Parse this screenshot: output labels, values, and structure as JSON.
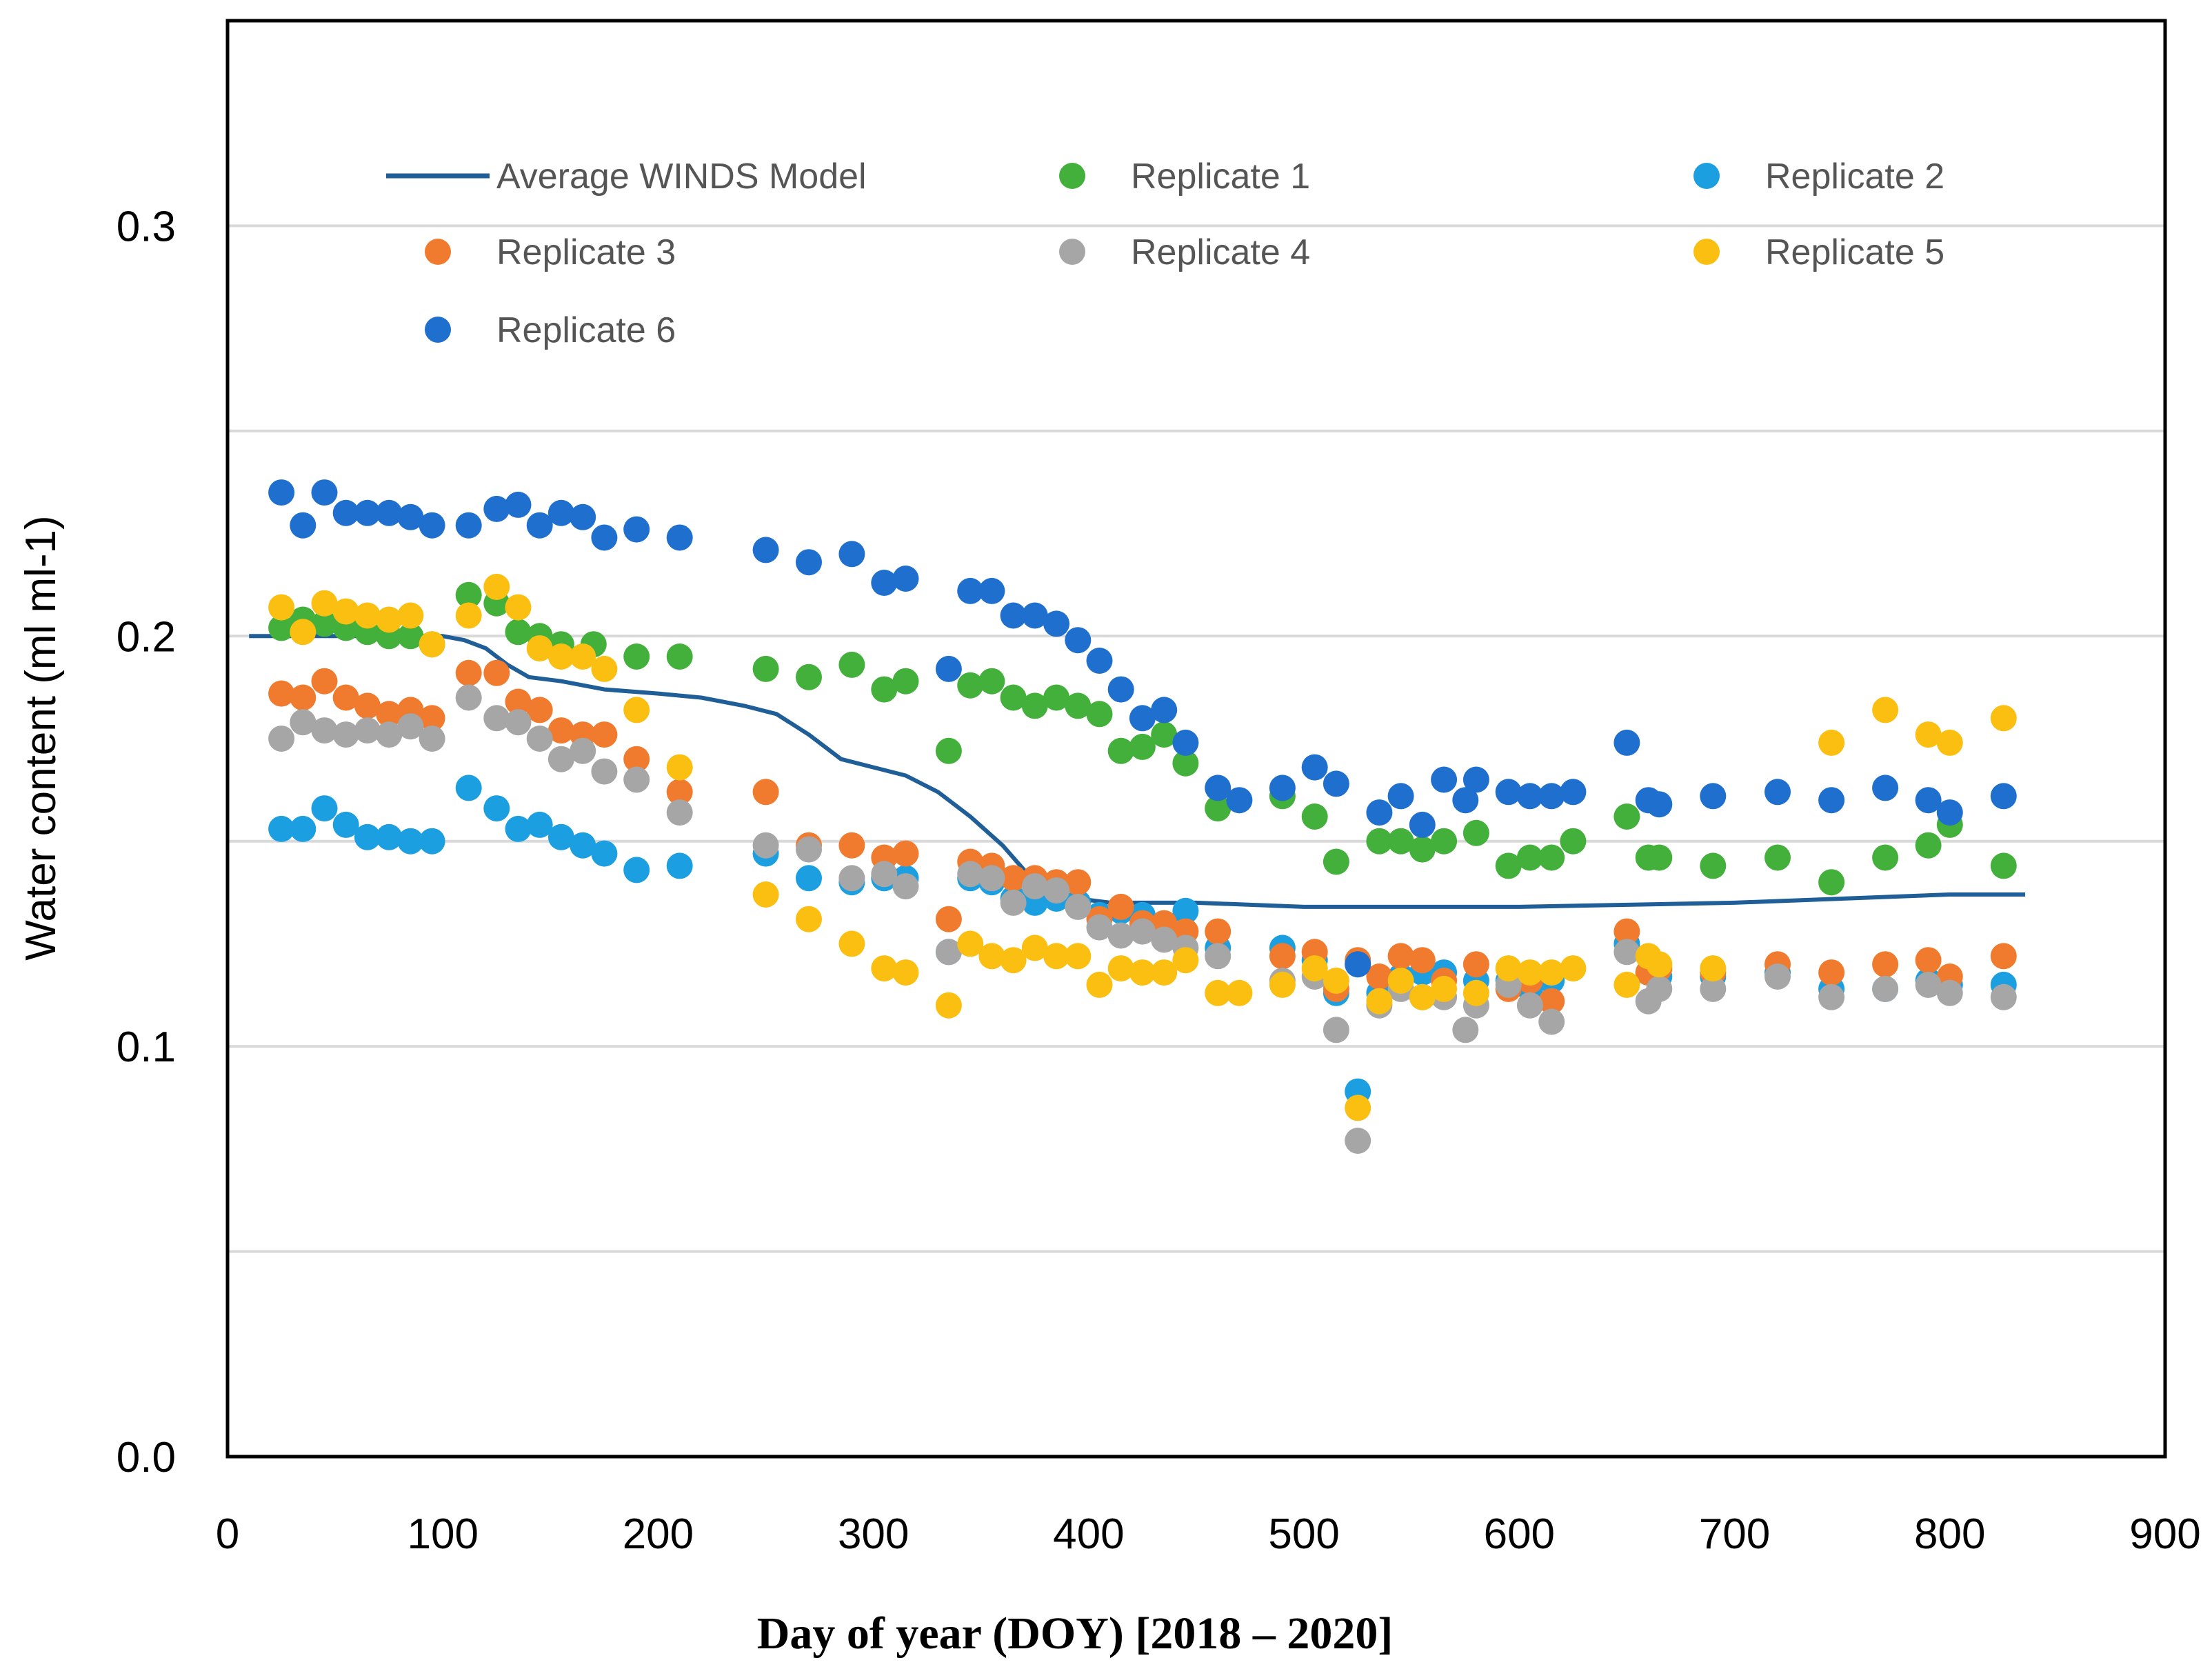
{
  "chart_data": {
    "type": "scatter",
    "title": "",
    "xlabel": "Day of year (DOY) [2018 – 2020]",
    "ylabel": "Water content (ml ml-1)",
    "xlim": [
      0,
      900
    ],
    "ylim": [
      0,
      0.35
    ],
    "xticks": [
      "0",
      "100",
      "200",
      "300",
      "400",
      "500",
      "600",
      "700",
      "800",
      "900"
    ],
    "yticks": [
      "0.0",
      "0.1",
      "0.2",
      "0.3"
    ],
    "grid": "horizontal gridlines every 0.05",
    "legend_position": "top",
    "line_series": {
      "name": "Average WINDS Model",
      "color": "#1f5e97",
      "points": [
        [
          10,
          0.2
        ],
        [
          40,
          0.2
        ],
        [
          70,
          0.2
        ],
        [
          100,
          0.2
        ],
        [
          110,
          0.199
        ],
        [
          120,
          0.197
        ],
        [
          130,
          0.193
        ],
        [
          140,
          0.19
        ],
        [
          155,
          0.189
        ],
        [
          175,
          0.187
        ],
        [
          200,
          0.186
        ],
        [
          220,
          0.185
        ],
        [
          240,
          0.183
        ],
        [
          255,
          0.181
        ],
        [
          270,
          0.176
        ],
        [
          285,
          0.17
        ],
        [
          300,
          0.168
        ],
        [
          315,
          0.166
        ],
        [
          330,
          0.162
        ],
        [
          345,
          0.156
        ],
        [
          360,
          0.149
        ],
        [
          370,
          0.143
        ],
        [
          380,
          0.139
        ],
        [
          395,
          0.136
        ],
        [
          410,
          0.135
        ],
        [
          450,
          0.135
        ],
        [
          500,
          0.134
        ],
        [
          600,
          0.134
        ],
        [
          700,
          0.135
        ],
        [
          800,
          0.137
        ],
        [
          835,
          0.137
        ]
      ]
    },
    "series": [
      {
        "name": "Replicate 1",
        "color": "#44b03c",
        "x": [
          25,
          35,
          45,
          55,
          65,
          75,
          85,
          95,
          112,
          125,
          135,
          145,
          155,
          170,
          190,
          210,
          250,
          270,
          290,
          305,
          315,
          335,
          345,
          355,
          365,
          375,
          385,
          395,
          405,
          415,
          425,
          435,
          445,
          460,
          490,
          505,
          515,
          535,
          545,
          555,
          565,
          580,
          595,
          605,
          615,
          625,
          650,
          660,
          665,
          690,
          720,
          745,
          770,
          790,
          800,
          825
        ],
        "values": [
          0.202,
          0.204,
          0.203,
          0.202,
          0.201,
          0.2,
          0.2,
          0.198,
          0.21,
          0.208,
          0.201,
          0.2,
          0.198,
          0.198,
          0.195,
          0.195,
          0.192,
          0.19,
          0.193,
          0.187,
          0.189,
          0.172,
          0.188,
          0.189,
          0.185,
          0.183,
          0.185,
          0.183,
          0.181,
          0.172,
          0.173,
          0.176,
          0.169,
          0.158,
          0.161,
          0.156,
          0.145,
          0.15,
          0.15,
          0.148,
          0.15,
          0.152,
          0.144,
          0.146,
          0.146,
          0.15,
          0.156,
          0.146,
          0.146,
          0.144,
          0.146,
          0.14,
          0.146,
          0.149,
          0.154,
          0.144
        ]
      },
      {
        "name": "Replicate 2",
        "color": "#1c9fe0",
        "x": [
          25,
          35,
          45,
          55,
          65,
          75,
          85,
          95,
          112,
          125,
          135,
          145,
          155,
          165,
          175,
          190,
          210,
          250,
          270,
          290,
          305,
          315,
          335,
          345,
          355,
          365,
          375,
          385,
          395,
          405,
          415,
          425,
          435,
          445,
          460,
          490,
          505,
          515,
          525,
          535,
          545,
          555,
          565,
          580,
          595,
          605,
          615,
          650,
          660,
          665,
          690,
          720,
          745,
          770,
          790,
          800,
          825
        ],
        "values": [
          0.153,
          0.153,
          0.158,
          0.154,
          0.151,
          0.151,
          0.15,
          0.15,
          0.163,
          0.158,
          0.153,
          0.154,
          0.151,
          0.149,
          0.147,
          0.143,
          0.144,
          0.147,
          0.141,
          0.14,
          0.141,
          0.141,
          0.123,
          0.141,
          0.14,
          0.136,
          0.135,
          0.136,
          0.135,
          0.132,
          0.133,
          0.132,
          0.13,
          0.133,
          0.124,
          0.124,
          0.121,
          0.113,
          0.089,
          0.113,
          0.117,
          0.118,
          0.118,
          0.116,
          0.116,
          0.114,
          0.116,
          0.125,
          0.118,
          0.117,
          0.117,
          0.118,
          0.114,
          0.114,
          0.116,
          0.115,
          0.115
        ]
      },
      {
        "name": "Replicate 3",
        "color": "#f07b2e",
        "x": [
          25,
          35,
          45,
          55,
          65,
          75,
          85,
          95,
          112,
          125,
          135,
          145,
          155,
          165,
          175,
          190,
          210,
          250,
          270,
          290,
          305,
          315,
          335,
          345,
          355,
          365,
          375,
          385,
          395,
          405,
          415,
          425,
          435,
          445,
          460,
          490,
          505,
          515,
          525,
          535,
          545,
          555,
          565,
          580,
          595,
          605,
          615,
          650,
          660,
          665,
          690,
          720,
          745,
          770,
          790,
          800,
          825
        ],
        "values": [
          0.186,
          0.185,
          0.189,
          0.185,
          0.183,
          0.181,
          0.182,
          0.18,
          0.191,
          0.191,
          0.184,
          0.182,
          0.177,
          0.176,
          0.176,
          0.17,
          0.162,
          0.162,
          0.149,
          0.149,
          0.146,
          0.147,
          0.131,
          0.145,
          0.144,
          0.141,
          0.141,
          0.14,
          0.14,
          0.131,
          0.134,
          0.13,
          0.13,
          0.128,
          0.128,
          0.122,
          0.123,
          0.114,
          0.121,
          0.117,
          0.122,
          0.121,
          0.116,
          0.12,
          0.114,
          0.116,
          0.111,
          0.128,
          0.118,
          0.119,
          0.118,
          0.12,
          0.118,
          0.12,
          0.121,
          0.117,
          0.122
        ]
      },
      {
        "name": "Replicate 4",
        "color": "#a6a6a6",
        "x": [
          25,
          35,
          45,
          55,
          65,
          75,
          85,
          95,
          112,
          125,
          135,
          145,
          155,
          165,
          175,
          190,
          210,
          250,
          270,
          290,
          305,
          315,
          335,
          345,
          355,
          365,
          375,
          385,
          395,
          405,
          415,
          425,
          435,
          445,
          460,
          490,
          505,
          515,
          525,
          535,
          545,
          555,
          565,
          575,
          580,
          595,
          605,
          615,
          650,
          660,
          665,
          690,
          720,
          745,
          770,
          790,
          800,
          825
        ],
        "values": [
          0.175,
          0.179,
          0.177,
          0.176,
          0.177,
          0.176,
          0.178,
          0.175,
          0.185,
          0.18,
          0.179,
          0.175,
          0.17,
          0.172,
          0.167,
          0.165,
          0.157,
          0.149,
          0.148,
          0.141,
          0.142,
          0.139,
          0.123,
          0.142,
          0.141,
          0.135,
          0.139,
          0.138,
          0.134,
          0.129,
          0.127,
          0.128,
          0.126,
          0.124,
          0.122,
          0.116,
          0.117,
          0.104,
          0.077,
          0.11,
          0.114,
          0.112,
          0.112,
          0.104,
          0.11,
          0.115,
          0.11,
          0.106,
          0.123,
          0.111,
          0.114,
          0.114,
          0.117,
          0.112,
          0.114,
          0.115,
          0.113,
          0.112
        ]
      },
      {
        "name": "Replicate 5",
        "color": "#fbbf12",
        "x": [
          25,
          35,
          45,
          55,
          65,
          75,
          85,
          95,
          112,
          125,
          135,
          145,
          155,
          165,
          175,
          190,
          210,
          250,
          270,
          290,
          305,
          315,
          335,
          345,
          355,
          365,
          375,
          385,
          395,
          405,
          415,
          425,
          435,
          445,
          460,
          470,
          490,
          505,
          515,
          525,
          535,
          545,
          555,
          565,
          580,
          595,
          605,
          615,
          625,
          650,
          660,
          665,
          690,
          745,
          770,
          790,
          800,
          825
        ],
        "values": [
          0.207,
          0.201,
          0.208,
          0.206,
          0.205,
          0.204,
          0.205,
          0.198,
          0.205,
          0.212,
          0.207,
          0.197,
          0.195,
          0.195,
          0.192,
          0.182,
          0.168,
          0.137,
          0.131,
          0.125,
          0.119,
          0.118,
          0.11,
          0.125,
          0.122,
          0.121,
          0.124,
          0.122,
          0.122,
          0.115,
          0.119,
          0.118,
          0.118,
          0.121,
          0.113,
          0.113,
          0.115,
          0.119,
          0.116,
          0.085,
          0.111,
          0.116,
          0.112,
          0.114,
          0.113,
          0.119,
          0.118,
          0.118,
          0.119,
          0.115,
          0.122,
          0.12,
          0.119,
          0.174,
          0.182,
          0.176,
          0.174,
          0.18
        ]
      },
      {
        "name": "Replicate 6",
        "color": "#1f6fcf",
        "x": [
          25,
          35,
          45,
          55,
          65,
          75,
          85,
          95,
          112,
          125,
          135,
          145,
          155,
          165,
          175,
          190,
          210,
          250,
          270,
          290,
          305,
          315,
          335,
          345,
          355,
          365,
          375,
          385,
          395,
          405,
          415,
          425,
          435,
          445,
          460,
          470,
          490,
          505,
          515,
          525,
          535,
          545,
          555,
          565,
          575,
          580,
          595,
          605,
          615,
          625,
          650,
          660,
          665,
          690,
          720,
          745,
          770,
          790,
          800,
          825
        ],
        "values": [
          0.235,
          0.227,
          0.235,
          0.23,
          0.23,
          0.23,
          0.229,
          0.227,
          0.227,
          0.231,
          0.232,
          0.227,
          0.23,
          0.229,
          0.224,
          0.226,
          0.224,
          0.221,
          0.218,
          0.22,
          0.213,
          0.214,
          0.192,
          0.211,
          0.211,
          0.205,
          0.205,
          0.203,
          0.199,
          0.194,
          0.187,
          0.18,
          0.182,
          0.174,
          0.163,
          0.16,
          0.163,
          0.168,
          0.164,
          0.12,
          0.157,
          0.161,
          0.154,
          0.165,
          0.16,
          0.165,
          0.162,
          0.161,
          0.161,
          0.162,
          0.174,
          0.16,
          0.159,
          0.161,
          0.162,
          0.16,
          0.163,
          0.16,
          0.157,
          0.161
        ]
      }
    ],
    "legend": [
      {
        "label": "Average WINDS Model",
        "kind": "line",
        "color": "#1f5e97"
      },
      {
        "label": "Replicate 1",
        "kind": "dot",
        "color": "#44b03c"
      },
      {
        "label": "Replicate 2",
        "kind": "dot",
        "color": "#1c9fe0"
      },
      {
        "label": "Replicate 3",
        "kind": "dot",
        "color": "#f07b2e"
      },
      {
        "label": "Replicate 4",
        "kind": "dot",
        "color": "#a6a6a6"
      },
      {
        "label": "Replicate 5",
        "kind": "dot",
        "color": "#fbbf12"
      },
      {
        "label": "Replicate 6",
        "kind": "dot",
        "color": "#1f6fcf"
      }
    ]
  }
}
